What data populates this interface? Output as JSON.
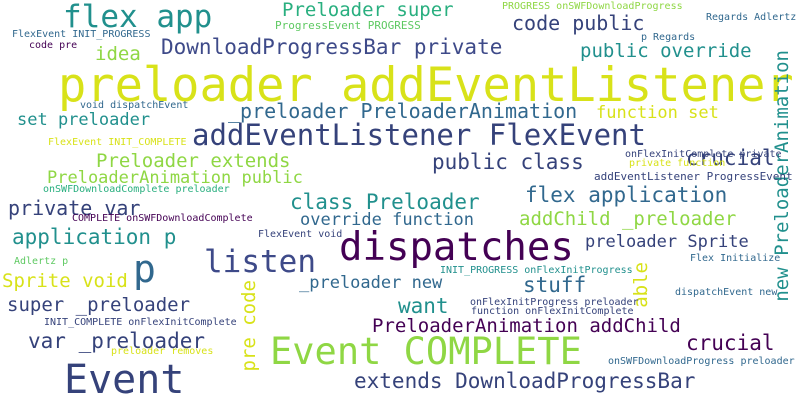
{
  "palette": {
    "background": "#ffffff",
    "navy": "#35427a",
    "teal": "#21908d",
    "green": "#5ec962",
    "lime": "#8fd744",
    "yellow": "#d8e219",
    "purple": "#440154",
    "indigo": "#3e4a89",
    "blue": "#31688e",
    "sea": "#29af7f"
  },
  "words": [
    {
      "id": "preloader-addeventlistener",
      "text": "preloader addEventListener"
    },
    {
      "id": "dispatches",
      "text": "dispatches"
    },
    {
      "id": "event-complete",
      "text": "Event COMPLETE"
    },
    {
      "id": "event",
      "text": "Event"
    },
    {
      "id": "flex-app",
      "text": "flex app"
    },
    {
      "id": "addeventlistener-flexevent",
      "text": "addEventListener FlexEvent"
    },
    {
      "id": "p-large",
      "text": "p"
    },
    {
      "id": "listen",
      "text": "listen"
    },
    {
      "id": "downloadprogressbar-private",
      "text": "DownloadProgressBar private"
    },
    {
      "id": "preloader-super",
      "text": "Preloader super"
    },
    {
      "id": "code-public",
      "text": "code public"
    },
    {
      "id": "preloader-preloaderanimation",
      "text": "_preloader PreloaderAnimation"
    },
    {
      "id": "public-override",
      "text": "public override"
    },
    {
      "id": "idea",
      "text": "idea"
    },
    {
      "id": "set-preloader",
      "text": "set preloader"
    },
    {
      "id": "function-set",
      "text": "function set"
    },
    {
      "id": "preloader-extends",
      "text": "Preloader extends"
    },
    {
      "id": "public-class",
      "text": "public class"
    },
    {
      "id": "preloaderanimation-public",
      "text": "PreloaderAnimation public"
    },
    {
      "id": "crucial",
      "text": "crucial"
    },
    {
      "id": "private-var",
      "text": "private var"
    },
    {
      "id": "class-preloader",
      "text": "class Preloader"
    },
    {
      "id": "flex-application",
      "text": "flex application"
    },
    {
      "id": "override-function",
      "text": "override function"
    },
    {
      "id": "addchild-preloader",
      "text": "addChild _preloader"
    },
    {
      "id": "application-p",
      "text": "application p"
    },
    {
      "id": "preloader-sprite",
      "text": "preloader Sprite"
    },
    {
      "id": "sprite-void",
      "text": "Sprite void"
    },
    {
      "id": "preloader-new",
      "text": "_preloader new"
    },
    {
      "id": "stuff",
      "text": "stuff"
    },
    {
      "id": "want",
      "text": "want"
    },
    {
      "id": "super-preloader",
      "text": "super _preloader"
    },
    {
      "id": "preloaderanimation-addchild",
      "text": "PreloaderAnimation addChild"
    },
    {
      "id": "var-preloader",
      "text": "var _preloader"
    },
    {
      "id": "extends-downloadprogressbar",
      "text": "extends DownloadProgressBar"
    },
    {
      "id": "pre-code",
      "text": "pre code"
    },
    {
      "id": "able",
      "text": "able"
    },
    {
      "id": "new-preloaderanimation",
      "text": "new PreloaderAnimation"
    },
    {
      "id": "progressevent-progress",
      "text": "ProgressEvent PROGRESS"
    },
    {
      "id": "progress-onswfdownloadprogress",
      "text": "PROGRESS onSWFDownloadProgress"
    },
    {
      "id": "regards-adlertz",
      "text": "Regards Adlertz"
    },
    {
      "id": "p-regards",
      "text": "p Regards"
    },
    {
      "id": "flexevent-init-progress",
      "text": "FlexEvent INIT_PROGRESS"
    },
    {
      "id": "code-pre",
      "text": "code pre"
    },
    {
      "id": "void-dispatchevent",
      "text": "void dispatchEvent"
    },
    {
      "id": "flexevent-init-complete",
      "text": "FlexEvent INIT_COMPLETE"
    },
    {
      "id": "oninitcomplete-private",
      "text": "onFlexInitComplete private"
    },
    {
      "id": "private-function",
      "text": "private function"
    },
    {
      "id": "addeventlistener-progressevent",
      "text": "addEventListener ProgressEvent"
    },
    {
      "id": "onswfdownloadcomplete-preloader",
      "text": "onSWFDownloadComplete preloader"
    },
    {
      "id": "complete-onswfdownloadcomplete",
      "text": "COMPLETE onSWFDownloadComplete"
    },
    {
      "id": "flexevent-void",
      "text": "FlexEvent void"
    },
    {
      "id": "flex-initialize",
      "text": "Flex Initialize"
    },
    {
      "id": "init-progress-onflexinitprogress",
      "text": "INIT_PROGRESS onFlexInitProgress"
    },
    {
      "id": "adlertz-p",
      "text": "Adlertz p"
    },
    {
      "id": "dispatchevent-new",
      "text": "dispatchEvent new"
    },
    {
      "id": "onflexinitprogress-preloader",
      "text": "onFlexInitProgress preloader"
    },
    {
      "id": "function-onflexinitcomplete",
      "text": "function onFlexInitComplete"
    },
    {
      "id": "init-complete-onflexinitcomplete",
      "text": "INIT_COMPLETE onFlexInitComplete"
    },
    {
      "id": "preloader-removes",
      "text": "preloader removes"
    },
    {
      "id": "onswfdownloadprogress-preloader",
      "text": "onSWFDownloadProgress preloader"
    }
  ]
}
